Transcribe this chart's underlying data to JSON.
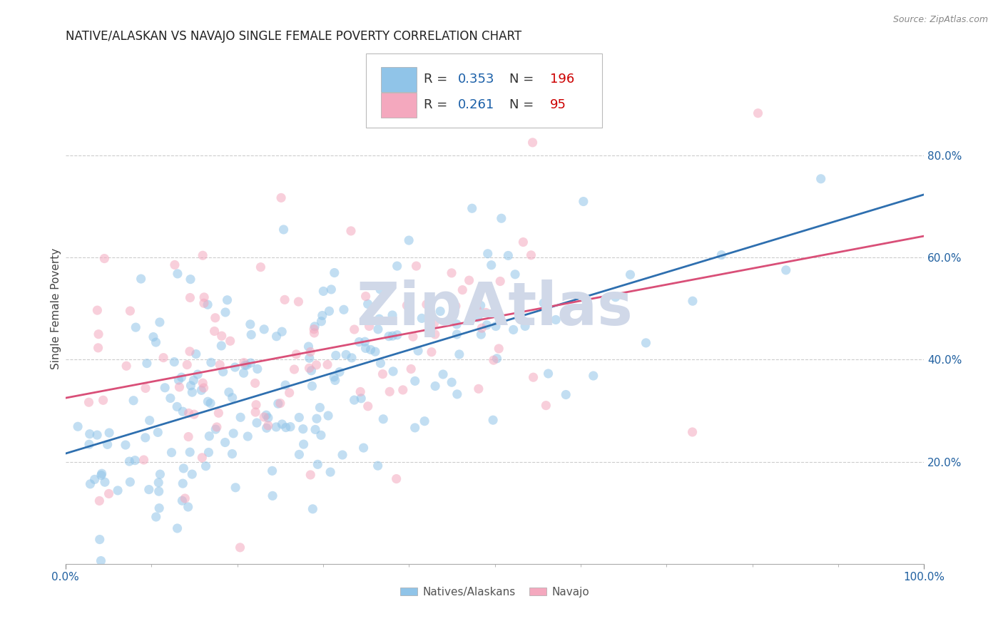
{
  "title": "NATIVE/ALASKAN VS NAVAJO SINGLE FEMALE POVERTY CORRELATION CHART",
  "source": "Source: ZipAtlas.com",
  "ylabel": "Single Female Poverty",
  "xlim": [
    0,
    1
  ],
  "ylim": [
    0,
    1
  ],
  "xtick_positions": [
    0.0,
    1.0
  ],
  "xticklabels": [
    "0.0%",
    "100.0%"
  ],
  "yticks_right": [
    0.2,
    0.4,
    0.6,
    0.8
  ],
  "yticklabels_right": [
    "20.0%",
    "40.0%",
    "60.0%",
    "80.0%"
  ],
  "grid_yticks": [
    0.2,
    0.4,
    0.6,
    0.8
  ],
  "blue_color": "#90c4e8",
  "pink_color": "#f4a8be",
  "blue_line_color": "#2e6faf",
  "pink_line_color": "#d94f78",
  "R_blue": 0.353,
  "N_blue": 196,
  "R_pink": 0.261,
  "N_pink": 95,
  "legend_R_color": "#1a5fa8",
  "legend_N_color": "#cc0000",
  "watermark": "ZipAtlas",
  "watermark_color": "#d0d8e8",
  "background_color": "#ffffff",
  "grid_color": "#cccccc",
  "seed_blue": 42,
  "seed_pink": 7,
  "title_fontsize": 12,
  "axis_label_fontsize": 11,
  "tick_fontsize": 11,
  "legend_fontsize": 13,
  "dot_size": 90,
  "dot_alpha": 0.55,
  "line_width": 2.0,
  "figsize": [
    14.06,
    8.92
  ],
  "dpi": 100
}
